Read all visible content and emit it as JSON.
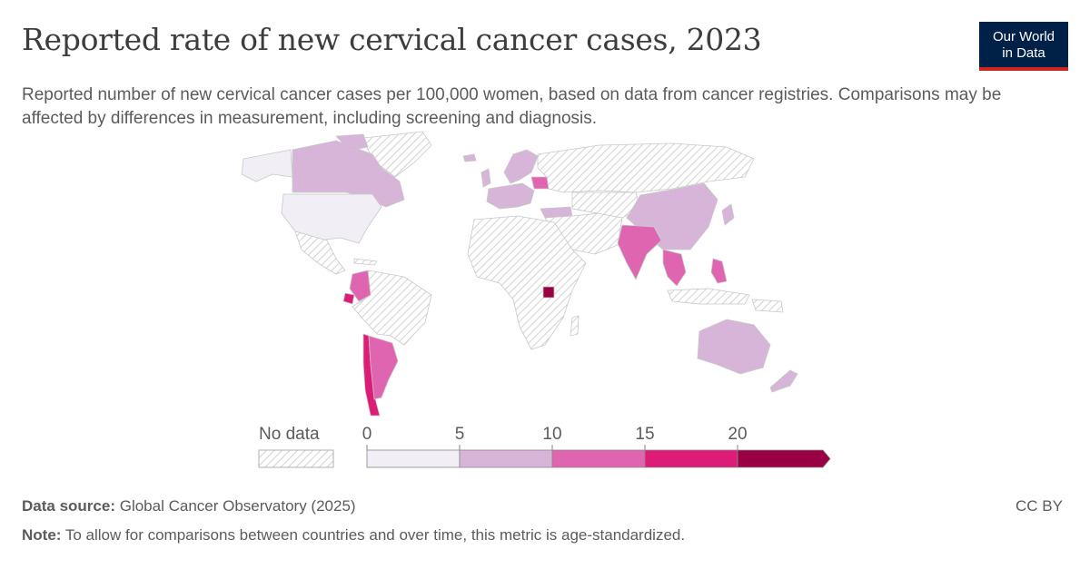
{
  "title": "Reported rate of new cervical cancer cases, 2023",
  "subtitle": "Reported number of new cervical cancer cases per 100,000 women, based on data from cancer registries. Comparisons may be affected by differences in measurement, including screening and diagnosis.",
  "logo": {
    "line1": "Our World",
    "line2": "in Data",
    "bg": "#002147",
    "accent": "#ce261e"
  },
  "legend": {
    "no_data_label": "No data",
    "ticks": [
      "0",
      "5",
      "10",
      "15",
      "20"
    ],
    "bins": [
      {
        "min": 0,
        "max": 5,
        "color": "#f1eef6"
      },
      {
        "min": 5,
        "max": 10,
        "color": "#d7b5d8"
      },
      {
        "min": 10,
        "max": 15,
        "color": "#df65b0"
      },
      {
        "min": 15,
        "max": 20,
        "color": "#dd1c77"
      },
      {
        "min": 20,
        "max": null,
        "color": "#980043"
      }
    ]
  },
  "footer": {
    "source_label": "Data source:",
    "source_text": "Global Cancer Observatory (2025)",
    "note_label": "Note:",
    "note_text": "To allow for comparisons between countries and over time, this metric is age-standardized.",
    "license": "CC BY"
  }
}
